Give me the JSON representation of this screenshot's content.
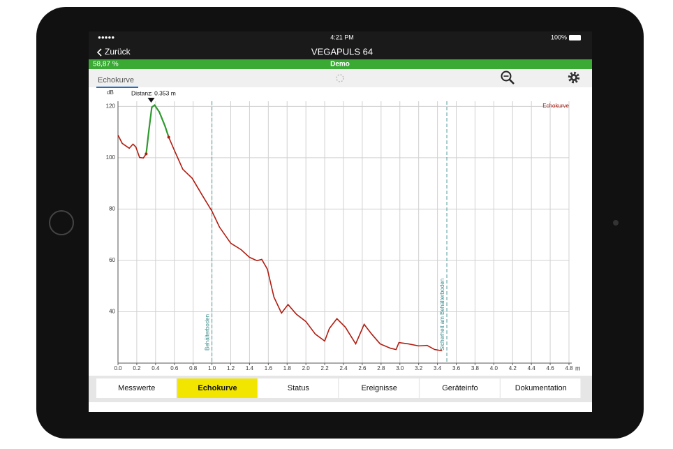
{
  "status_bar": {
    "signal": "●●●●●",
    "time": "4:21 PM",
    "battery": "100%"
  },
  "nav": {
    "back": "Zurück",
    "title": "VEGAPULS 64"
  },
  "progress": {
    "percent": "58,87 %",
    "mode": "Demo"
  },
  "toolbar": {
    "tab": "Echokurve"
  },
  "chart_data": {
    "type": "line",
    "x_unit": "m",
    "y_unit": "dB",
    "xlim": [
      0,
      4.8
    ],
    "xticks": [
      {
        "value": 0,
        "label": "0.0"
      },
      0.2,
      0.4,
      0.6,
      0.8,
      {
        "value": 1,
        "label": "1.0"
      },
      1.2,
      1.4,
      1.6,
      1.8,
      {
        "value": 2,
        "label": "2.0"
      },
      2.2,
      2.4,
      2.6,
      2.8,
      {
        "value": 3,
        "label": "3.0"
      },
      3.2,
      3.4,
      3.6,
      3.8,
      {
        "value": 4,
        "label": "4.0"
      },
      4.2,
      4.4,
      4.6,
      4.8
    ],
    "ylim": [
      20,
      122
    ],
    "yticks": [
      40,
      60,
      80,
      100,
      120
    ],
    "grid": true,
    "legend": "top-right",
    "series": [
      {
        "name": "Echokurve",
        "color": "#b01c10",
        "x": [
          0,
          0.045,
          0.12,
          0.16,
          0.19,
          0.23,
          0.27,
          0.3,
          0.33,
          0.36,
          0.39,
          0.44,
          0.5,
          0.54,
          0.6,
          0.69,
          0.79,
          0.9,
          1.0,
          1.08,
          1.2,
          1.31,
          1.4,
          1.48,
          1.53,
          1.59,
          1.66,
          1.74,
          1.81,
          1.9,
          2.0,
          2.1,
          2.2,
          2.25,
          2.33,
          2.42,
          2.53,
          2.62,
          2.7,
          2.79,
          2.9,
          2.96,
          2.99,
          3.09,
          3.2,
          3.29,
          3.37,
          3.45
        ],
        "values": [
          108.8,
          105.6,
          103.7,
          105.3,
          104.2,
          100.1,
          99.9,
          101.5,
          null,
          null,
          null,
          null,
          null,
          108,
          102.9,
          95.5,
          92,
          85.2,
          79.2,
          73,
          66.7,
          64.2,
          61.2,
          59.9,
          60.4,
          56.6,
          45.7,
          39.5,
          42.8,
          39,
          36.2,
          31.3,
          28.6,
          33.5,
          37.3,
          34,
          27.5,
          35.1,
          31.3,
          27.5,
          25.8,
          25.3,
          28,
          27.5,
          26.7,
          26.9,
          25.3,
          24.8
        ]
      },
      {
        "color": "#2e9a2e",
        "x": [
          0.3,
          0.33,
          0.36,
          0.39,
          0.44,
          0.5,
          0.54
        ],
        "values": [
          101.5,
          111,
          119.7,
          120.5,
          117.8,
          112.4,
          108
        ]
      }
    ],
    "annotations": [
      {
        "x": 1.0,
        "label": "Behälterboden"
      },
      {
        "x": 3.5,
        "label": "Sicherheit am Behälterboden"
      }
    ],
    "marker": {
      "x": 0.353,
      "label": "Distanz: 0.353 m"
    }
  },
  "tabs": {
    "items": [
      "Messwerte",
      "Echokurve",
      "Status",
      "Ereignisse",
      "Geräteinfo",
      "Dokumentation"
    ],
    "active": 1
  }
}
